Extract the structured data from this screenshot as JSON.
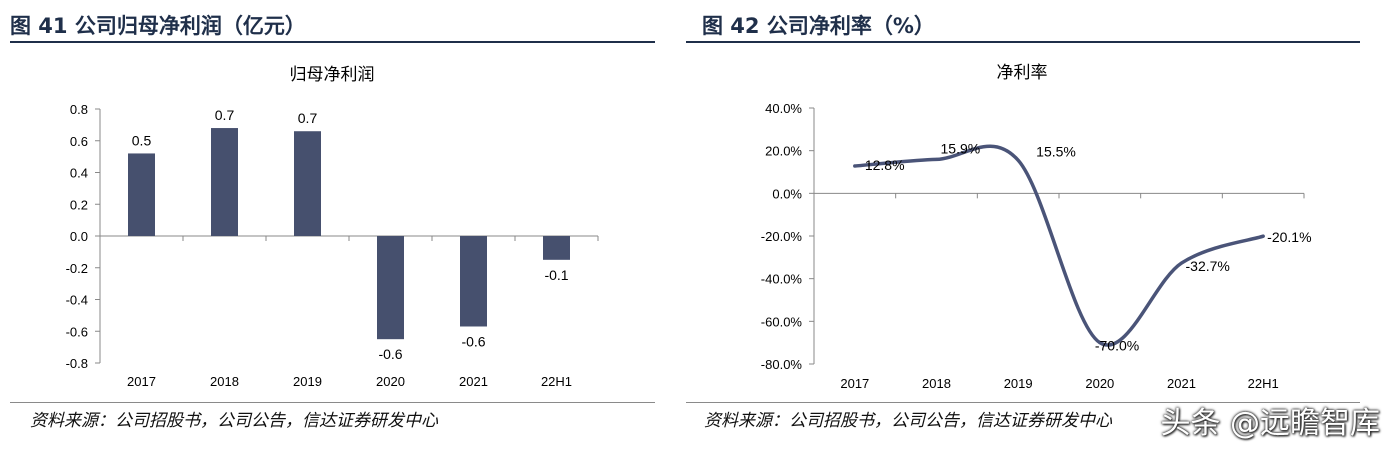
{
  "figure1": {
    "title": "图 41  公司归母净利润（亿元）",
    "source": "资料来源：公司招股书，公司公告，信达证券研发中心"
  },
  "figure2": {
    "title": "图 42  公司净利率（%）",
    "source": "资料来源：公司招股书，公司公告，信达证券研发中心"
  },
  "watermark": "头条 @远瞻智库",
  "colors": {
    "bar": "#46506e",
    "line": "#4a5478",
    "title": "#1f2f4a"
  },
  "chart_data": [
    {
      "type": "bar",
      "title": "归母净利润",
      "categories": [
        "2017",
        "2018",
        "2019",
        "2020",
        "2021",
        "22H1"
      ],
      "values": [
        0.52,
        0.68,
        0.66,
        -0.65,
        -0.57,
        -0.15
      ],
      "data_labels": [
        "0.5",
        "0.7",
        "0.7",
        "-0.6",
        "-0.6",
        "-0.1"
      ],
      "ylim": [
        -0.8,
        0.8
      ],
      "yticks": [
        0.8,
        0.6,
        0.4,
        0.2,
        0.0,
        -0.2,
        -0.4,
        -0.6,
        -0.8
      ],
      "ytick_labels": [
        "0.8",
        "0.6",
        "0.4",
        "0.2",
        "0.0",
        "-0.2",
        "-0.4",
        "-0.6",
        "-0.8"
      ],
      "grid": false,
      "legend": "none"
    },
    {
      "type": "line",
      "title": "净利率",
      "categories": [
        "2017",
        "2018",
        "2019",
        "2020",
        "2021",
        "22H1"
      ],
      "values": [
        12.8,
        15.9,
        15.5,
        -70.0,
        -32.7,
        -20.1
      ],
      "data_labels": [
        "12.8%",
        "15.9%",
        "15.5%",
        "-70.0%",
        "-32.7%",
        "-20.1%"
      ],
      "ylim": [
        -80,
        40
      ],
      "yticks": [
        40,
        20,
        0,
        -20,
        -40,
        -60,
        -80
      ],
      "ytick_labels": [
        "40.0%",
        "20.0%",
        "0.0%",
        "-20.0%",
        "-40.0%",
        "-60.0%",
        "-80.0%"
      ],
      "smooth": true,
      "grid": false,
      "legend": "none"
    }
  ]
}
